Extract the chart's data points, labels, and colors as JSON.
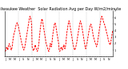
{
  "title": "Milwaukee Weather  Solar Radiation Avg per Day W/m2/minute",
  "title_fontsize": 3.5,
  "line_color": "red",
  "line_width": 0.7,
  "background_color": "#ffffff",
  "grid_color": "#999999",
  "y_min": 0,
  "y_max": 7,
  "yticks": [
    1,
    2,
    3,
    4,
    5,
    6,
    7
  ],
  "ytick_fontsize": 2.5,
  "xtick_fontsize": 2.3,
  "num_years": 4,
  "points_per_year": 52,
  "vertical_grid_count": 7,
  "values": [
    0.8,
    0.9,
    1.2,
    1.5,
    1.3,
    1.0,
    1.4,
    1.8,
    2.0,
    1.7,
    1.5,
    1.2,
    1.0,
    1.3,
    1.8,
    2.5,
    3.0,
    3.5,
    3.8,
    4.0,
    4.5,
    4.8,
    5.0,
    5.2,
    5.0,
    4.8,
    4.5,
    4.0,
    3.8,
    3.2,
    2.8,
    2.5,
    2.0,
    1.8,
    1.5,
    1.2,
    1.0,
    1.2,
    1.5,
    2.0,
    2.5,
    3.0,
    3.5,
    4.0,
    4.5,
    5.0,
    5.5,
    6.0,
    6.2,
    6.0,
    5.5,
    5.0,
    1.5,
    1.2,
    1.0,
    0.9,
    1.2,
    1.5,
    1.8,
    1.5,
    1.2,
    1.0,
    0.8,
    1.0,
    1.5,
    2.0,
    3.0,
    3.8,
    4.5,
    5.0,
    5.5,
    5.8,
    5.5,
    5.0,
    4.5,
    4.0,
    3.5,
    3.0,
    2.5,
    2.0,
    1.8,
    1.5,
    1.2,
    1.0,
    0.8,
    1.0,
    1.5,
    2.0,
    1.8,
    1.5,
    2.0,
    2.8,
    3.5,
    4.0,
    4.5,
    5.0,
    5.2,
    5.0,
    4.5,
    4.0,
    3.5,
    3.0,
    2.5,
    2.0,
    1.0,
    0.8,
    0.9,
    1.2,
    1.5,
    1.3,
    1.0,
    1.2,
    1.5,
    1.8,
    1.5,
    1.2,
    1.5,
    2.0,
    3.0,
    3.8,
    4.2,
    4.8,
    5.2,
    5.5,
    5.2,
    4.8,
    4.2,
    3.8,
    3.2,
    2.8,
    2.2,
    1.8,
    1.5,
    1.2,
    1.0,
    1.2,
    1.5,
    1.8,
    2.2,
    2.8,
    3.2,
    3.8,
    4.2,
    4.8,
    5.2,
    5.5,
    5.2,
    4.8,
    4.5,
    4.0,
    3.5,
    3.0,
    2.5,
    2.0,
    1.5,
    1.2,
    1.5,
    1.8,
    2.2,
    2.8,
    3.2,
    3.8,
    4.0,
    4.5,
    4.8,
    5.0,
    4.8,
    4.5,
    4.0,
    3.5,
    3.0,
    2.8,
    2.5,
    2.2,
    2.0,
    1.8,
    1.5,
    1.8,
    2.2,
    2.8,
    3.5,
    4.0,
    4.5,
    5.0,
    5.5,
    6.0,
    6.2,
    6.0,
    5.8,
    5.5,
    5.2,
    5.0,
    4.8,
    4.5,
    4.2,
    3.8,
    3.5,
    3.2,
    2.8,
    2.5,
    2.2,
    2.0,
    1.8,
    2.0,
    2.5,
    3.0,
    3.5,
    4.0
  ]
}
